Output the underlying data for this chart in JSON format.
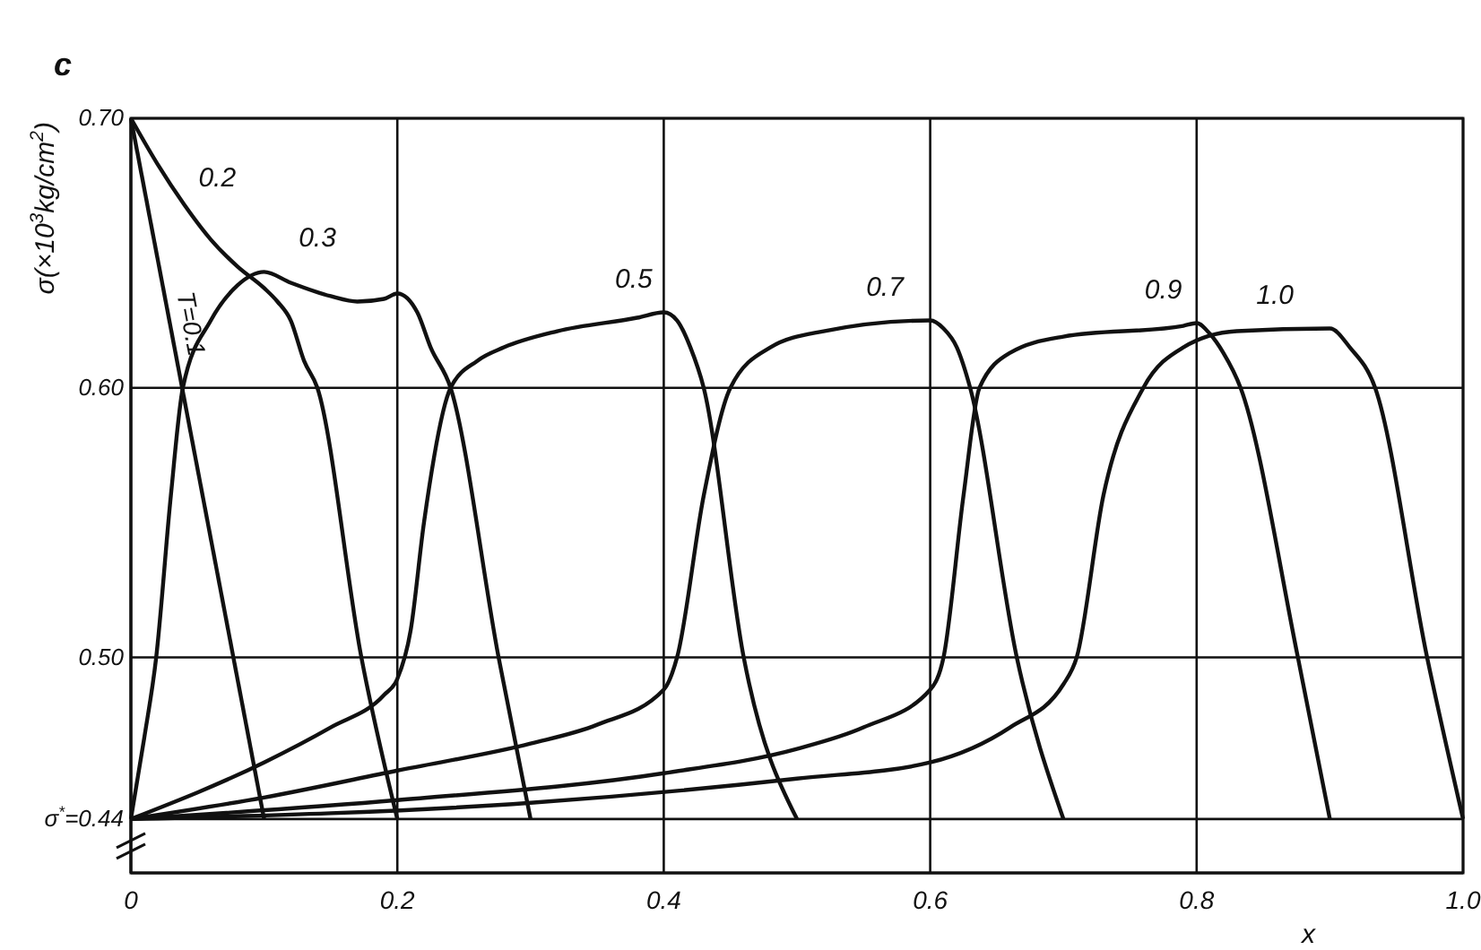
{
  "chart_data": {
    "type": "line",
    "title": "c",
    "xlabel": "x",
    "ylabel": "σ(×10$^{3}$kg/cm$^{2}$)",
    "xlim": [
      0,
      1
    ],
    "ylim": [
      0.42,
      0.7
    ],
    "xticks": [
      0,
      0.2,
      0.4,
      0.6,
      0.8,
      {
        "value": 1,
        "label": "1.0"
      }
    ],
    "yticks": [
      {
        "value": 0.44,
        "label": "σ$^{*}$=0.44"
      },
      {
        "value": 0.5,
        "label": "0.50"
      },
      {
        "value": 0.6,
        "label": "0.60"
      },
      {
        "value": 0.7,
        "label": "0.70"
      }
    ],
    "grid": true,
    "line_style": "solid",
    "series": [
      {
        "name": "T=0.1",
        "color": "#111111",
        "x": [
          0,
          0.1
        ],
        "values": [
          0.7,
          0.44
        ]
      },
      {
        "name": "0.2",
        "color": "#111111",
        "x": [
          0,
          0.02,
          0.04,
          0.06,
          0.08,
          0.1,
          0.11,
          0.12,
          0.13,
          0.14,
          0.173,
          0.2
        ],
        "values": [
          0.7,
          0.683,
          0.668,
          0.655,
          0.645,
          0.637,
          0.632,
          0.625,
          0.61,
          0.6,
          0.5,
          0.44
        ]
      },
      {
        "name": "0.3",
        "color": "#111111",
        "x": [
          0,
          0.01,
          0.019,
          0.03,
          0.039,
          0.06,
          0.08,
          0.1,
          0.12,
          0.15,
          0.17,
          0.19,
          0.2,
          0.215,
          0.225,
          0.24,
          0.276,
          0.3
        ],
        "values": [
          0.44,
          0.47,
          0.5,
          0.56,
          0.6,
          0.625,
          0.638,
          0.643,
          0.639,
          0.634,
          0.632,
          0.633,
          0.635,
          0.628,
          0.615,
          0.6,
          0.5,
          0.44
        ]
      },
      {
        "name": "0.5",
        "color": "#111111",
        "x": [
          0,
          0.1,
          0.15,
          0.19,
          0.2,
          0.21,
          0.22,
          0.24,
          0.26,
          0.28,
          0.32,
          0.38,
          0.4,
          0.41,
          0.42,
          0.43,
          0.46,
          0.5
        ],
        "values": [
          0.44,
          0.461,
          0.474,
          0.486,
          0.492,
          0.51,
          0.55,
          0.6,
          0.61,
          0.615,
          0.621,
          0.626,
          0.628,
          0.625,
          0.615,
          0.6,
          0.5,
          0.44
        ]
      },
      {
        "name": "0.7",
        "color": "#111111",
        "x": [
          0,
          0.1,
          0.2,
          0.3,
          0.35,
          0.4,
          0.41,
          0.43,
          0.45,
          0.48,
          0.52,
          0.6,
          0.61,
          0.62,
          0.63,
          0.665,
          0.7
        ],
        "values": [
          0.44,
          0.448,
          0.458,
          0.468,
          0.475,
          0.488,
          0.5,
          0.56,
          0.6,
          0.615,
          0.621,
          0.625,
          0.622,
          0.615,
          0.6,
          0.5,
          0.44
        ]
      },
      {
        "name": "0.9",
        "color": "#111111",
        "x": [
          0,
          0.2,
          0.4,
          0.5,
          0.55,
          0.6,
          0.61,
          0.625,
          0.637,
          0.66,
          0.7,
          0.79,
          0.8,
          0.81,
          0.82,
          0.833,
          0.876,
          0.9
        ],
        "values": [
          0.44,
          0.447,
          0.457,
          0.466,
          0.474,
          0.488,
          0.5,
          0.56,
          0.6,
          0.613,
          0.619,
          0.623,
          0.624,
          0.62,
          0.613,
          0.6,
          0.5,
          0.44
        ]
      },
      {
        "name": "1.0",
        "color": "#111111",
        "x": [
          0,
          0.3,
          0.5,
          0.6,
          0.66,
          0.7,
          0.71,
          0.73,
          0.76,
          0.79,
          0.83,
          0.9,
          0.915,
          0.934,
          0.973,
          1.0
        ],
        "values": [
          0.44,
          0.446,
          0.455,
          0.461,
          0.474,
          0.49,
          0.5,
          0.56,
          0.6,
          0.615,
          0.621,
          0.622,
          0.615,
          0.6,
          0.5,
          0.44
        ]
      }
    ]
  }
}
